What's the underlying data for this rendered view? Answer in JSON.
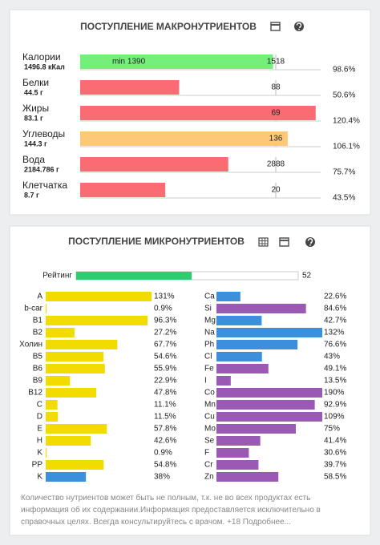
{
  "macro": {
    "title": "ПОСТУПЛЕНИЕ МАКРОНУТРИЕНТОВ",
    "names": [
      "Калории",
      "Белки",
      "Жиры",
      "Углеводы",
      "Вода",
      "Клетчатка"
    ],
    "amounts": [
      "1496.8 кКал",
      "44.5 г",
      "83.1 г",
      "144.3 г",
      "2184.786 г",
      "8.7 г"
    ],
    "min_label": "min 1390",
    "targets": [
      1518,
      88,
      69,
      136,
      2888,
      20
    ],
    "values": [
      98.6,
      50.6,
      120.4,
      106.1,
      75.7,
      43.5
    ],
    "value_labels": [
      "98.6%",
      "50.6%",
      "120.4%",
      "106.1%",
      "75.7%",
      "43.5%"
    ],
    "colors": [
      "#74f07a",
      "#fb6b73",
      "#fb6b73",
      "#fdc978",
      "#fb6b73",
      "#fb6b73"
    ],
    "xlim": [
      0,
      100
    ]
  },
  "micro": {
    "title": "ПОСТУПЛЕНИЕ МИКРОНУТРИЕНТОВ",
    "rating_label": "Рейтинг",
    "rating": 52,
    "rating_color": "#2ecc71",
    "xlim": [
      0,
      100
    ],
    "vitamins": {
      "names": [
        "A",
        "b-car",
        "B1",
        "B2",
        "Холин",
        "B5",
        "B6",
        "B9",
        "B12",
        "C",
        "D",
        "E",
        "H",
        "K",
        "PP",
        "K"
      ],
      "values": [
        131,
        0.9,
        96.3,
        27.2,
        67.7,
        54.6,
        55.9,
        22.9,
        47.8,
        11.1,
        11.5,
        57.8,
        42.6,
        0.9,
        54.8,
        38
      ],
      "value_labels": [
        "131%",
        "0.9%",
        "96.3%",
        "27.2%",
        "67.7%",
        "54.6%",
        "55.9%",
        "22.9%",
        "47.8%",
        "11.1%",
        "11.5%",
        "57.8%",
        "42.6%",
        "0.9%",
        "54.8%",
        "38%"
      ],
      "colors": [
        "#f2dc00",
        "#f2dc00",
        "#f2dc00",
        "#f2dc00",
        "#f2dc00",
        "#f2dc00",
        "#f2dc00",
        "#f2dc00",
        "#f2dc00",
        "#f2dc00",
        "#f2dc00",
        "#f2dc00",
        "#f2dc00",
        "#f2dc00",
        "#f2dc00",
        "#3b8fdb"
      ]
    },
    "minerals": {
      "names": [
        "Ca",
        "Si",
        "Mg",
        "Na",
        "Ph",
        "Cl",
        "Fe",
        "I",
        "Co",
        "Mn",
        "Cu",
        "Mo",
        "Se",
        "F",
        "Cr",
        "Zn"
      ],
      "values": [
        22.6,
        84.6,
        42.7,
        132,
        76.6,
        43,
        49.1,
        13.5,
        190,
        92.9,
        109,
        75,
        41.4,
        30.6,
        39.7,
        58.5
      ],
      "value_labels": [
        "22.6%",
        "84.6%",
        "42.7%",
        "132%",
        "76.6%",
        "43%",
        "49.1%",
        "13.5%",
        "190%",
        "92.9%",
        "109%",
        "75%",
        "41.4%",
        "30.6%",
        "39.7%",
        "58.5%"
      ],
      "colors": [
        "#3b8fdb",
        "#9b59b6",
        "#3b8fdb",
        "#3b8fdb",
        "#3b8fdb",
        "#3b8fdb",
        "#9b59b6",
        "#9b59b6",
        "#9b59b6",
        "#9b59b6",
        "#9b59b6",
        "#9b59b6",
        "#9b59b6",
        "#9b59b6",
        "#9b59b6",
        "#9b59b6"
      ]
    },
    "note": "Количество нутриентов может быть не полным, т.к. не во всех продуктах есть информация об их содержании.Информация предоставляется исключительно в справочных целях. Всегда консультируйтесь с врачом. +18 Подробнее..."
  }
}
